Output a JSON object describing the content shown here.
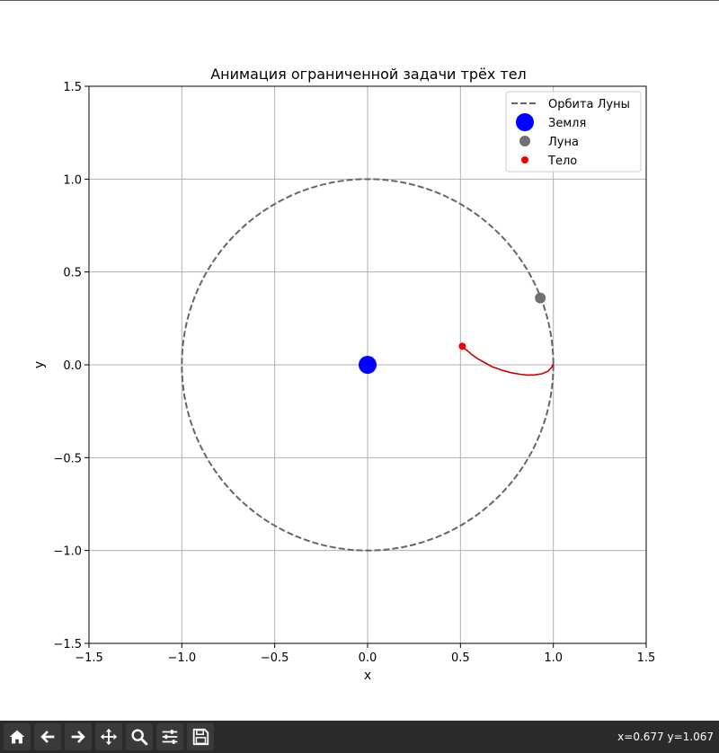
{
  "window": {
    "status_coords": "x=0.677 y=1.067"
  },
  "toolbar": {
    "buttons": [
      {
        "icon": "home-icon",
        "tooltip": ""
      },
      {
        "icon": "back-arrow-icon",
        "tooltip": ""
      },
      {
        "icon": "forward-arrow-icon",
        "tooltip": ""
      },
      {
        "icon": "pan-icon",
        "tooltip": ""
      },
      {
        "icon": "zoom-icon",
        "tooltip": ""
      },
      {
        "icon": "configure-subplots-icon",
        "tooltip": ""
      },
      {
        "icon": "save-icon",
        "tooltip": ""
      }
    ]
  },
  "chart_data": {
    "type": "line",
    "title": "Анимация ограниченной задачи трёх тел",
    "xlabel": "x",
    "ylabel": "y",
    "xlim": [
      -1.5,
      1.5
    ],
    "ylim": [
      -1.5,
      1.5
    ],
    "xticks": [
      -1.5,
      -1.0,
      -0.5,
      0.0,
      0.5,
      1.0,
      1.5
    ],
    "yticks": [
      -1.5,
      -1.0,
      -0.5,
      0.0,
      0.5,
      1.0,
      1.5
    ],
    "xtick_labels": [
      "−1.5",
      "−1.0",
      "−0.5",
      "0.0",
      "0.5",
      "1.0",
      "1.5"
    ],
    "ytick_labels": [
      "−1.5",
      "−1.0",
      "−0.5",
      "0.0",
      "0.5",
      "1.0",
      "1.5"
    ],
    "grid": true,
    "legend_position": "top-right",
    "moon_orbit": {
      "name": "Орбита Луны",
      "radius": 1.0,
      "color": "#666666",
      "style": "dashed"
    },
    "earth": {
      "name": "Земля",
      "x": 0.0,
      "y": 0.0,
      "color": "#0000ff"
    },
    "moon": {
      "name": "Луна",
      "x": 0.93,
      "y": 0.36,
      "color": "#707070"
    },
    "body": {
      "name": "Тело",
      "x": 0.51,
      "y": 0.1,
      "color": "#ee0000"
    },
    "trajectory": {
      "color": "#cc0000",
      "x": [
        1.0,
        0.99,
        0.97,
        0.94,
        0.9,
        0.86,
        0.82,
        0.77,
        0.72,
        0.67,
        0.63,
        0.59,
        0.56,
        0.54,
        0.52,
        0.51
      ],
      "y": [
        0.005,
        -0.015,
        -0.035,
        -0.048,
        -0.054,
        -0.055,
        -0.051,
        -0.042,
        -0.028,
        -0.01,
        0.012,
        0.035,
        0.056,
        0.074,
        0.089,
        0.1
      ]
    }
  }
}
